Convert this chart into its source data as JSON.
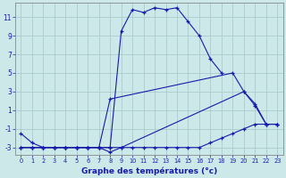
{
  "xlabel": "Graphe des températures (°c)",
  "background_color": "#cce8e8",
  "grid_color": "#aacccc",
  "line_color": "#1a1aaa",
  "ylim": [
    -3.8,
    12.5
  ],
  "xlim": [
    -0.5,
    23.5
  ],
  "yticks": [
    -3,
    -1,
    1,
    3,
    5,
    7,
    9,
    11
  ],
  "xticks": [
    0,
    1,
    2,
    3,
    4,
    5,
    6,
    7,
    8,
    9,
    10,
    11,
    12,
    13,
    14,
    15,
    16,
    17,
    18,
    19,
    20,
    21,
    22,
    23
  ],
  "line1_x": [
    0,
    1,
    2,
    3,
    4,
    5,
    6,
    7,
    8,
    9,
    10,
    11,
    12,
    13,
    14,
    15,
    16,
    17,
    18
  ],
  "line1_y": [
    -1.5,
    -2.5,
    -3.0,
    -3.0,
    -3.0,
    -3.0,
    -3.0,
    -3.0,
    -3.0,
    9.5,
    11.8,
    11.5,
    12.0,
    11.8,
    12.0,
    10.5,
    9.0,
    6.5,
    5.0
  ],
  "line2_x": [
    0,
    1,
    2,
    3,
    4,
    5,
    6,
    7,
    8,
    19,
    20,
    21,
    22,
    23
  ],
  "line2_y": [
    -3.0,
    -3.0,
    -3.0,
    -3.0,
    -3.0,
    -3.0,
    -3.0,
    -3.0,
    2.2,
    5.0,
    3.0,
    1.5,
    -0.5,
    -0.5
  ],
  "line3_x": [
    0,
    1,
    2,
    3,
    4,
    5,
    6,
    7,
    8,
    9,
    20,
    21,
    22,
    23
  ],
  "line3_y": [
    -3.0,
    -3.0,
    -3.0,
    -3.0,
    -3.0,
    -3.0,
    -3.0,
    -3.0,
    -3.5,
    -3.0,
    3.0,
    1.7,
    -0.5,
    -0.5
  ],
  "line4_x": [
    0,
    1,
    2,
    3,
    4,
    5,
    6,
    7,
    8,
    9,
    10,
    11,
    12,
    13,
    14,
    15,
    16,
    17,
    18,
    19,
    20,
    21,
    22,
    23
  ],
  "line4_y": [
    -3.0,
    -3.0,
    -3.0,
    -3.0,
    -3.0,
    -3.0,
    -3.0,
    -3.0,
    -3.0,
    -3.0,
    -3.0,
    -3.0,
    -3.0,
    -3.0,
    -3.0,
    -3.0,
    -3.0,
    -2.5,
    -2.0,
    -1.5,
    -1.0,
    -0.5,
    -0.5,
    -0.5
  ]
}
